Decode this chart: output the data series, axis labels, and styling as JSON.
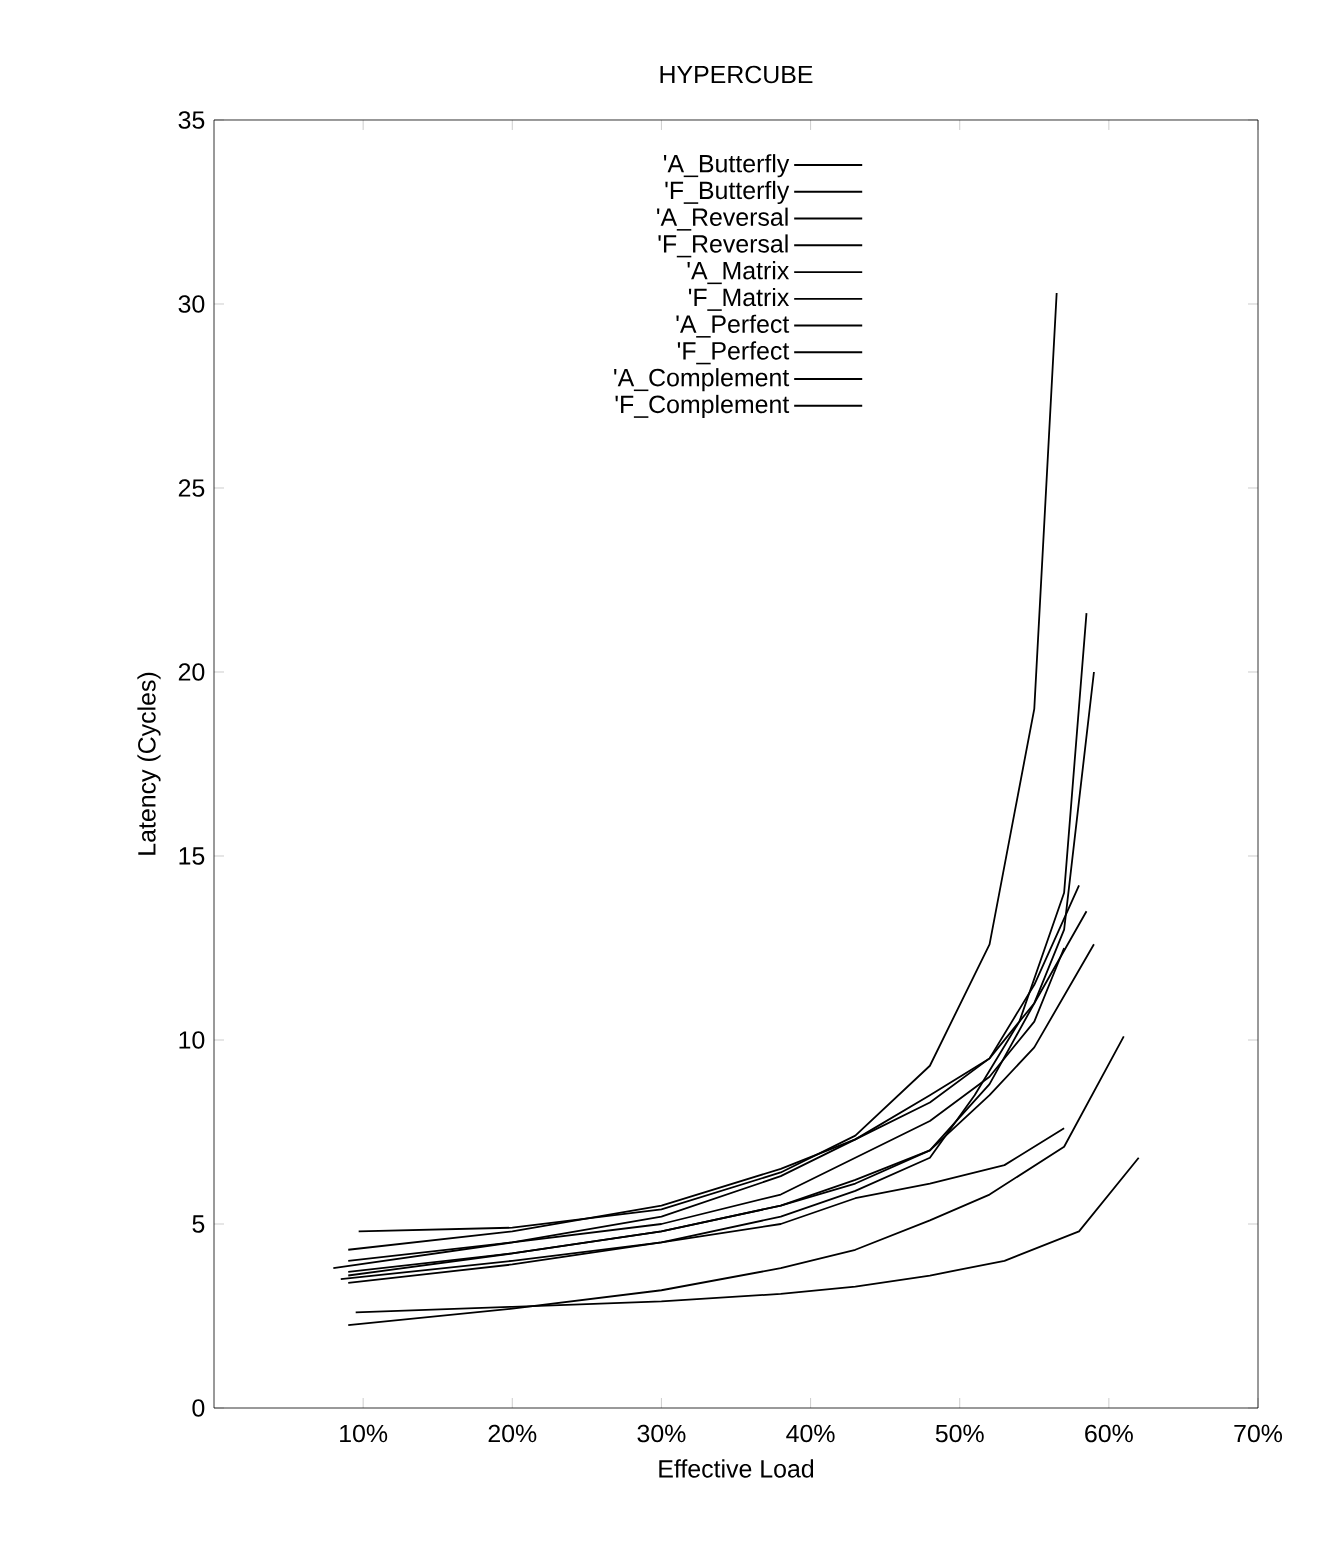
{
  "chart_data": {
    "type": "line",
    "title": "HYPERCUBE",
    "xlabel": "Effective Load",
    "ylabel": "Latency (Cycles)",
    "xlim": [
      0,
      70
    ],
    "ylim": [
      0,
      35
    ],
    "xticks": [
      {
        "value": 10,
        "label": "10%"
      },
      {
        "value": 20,
        "label": "20%"
      },
      {
        "value": 30,
        "label": "30%"
      },
      {
        "value": 40,
        "label": "40%"
      },
      {
        "value": 50,
        "label": "50%"
      },
      {
        "value": 60,
        "label": "60%"
      },
      {
        "value": 70,
        "label": "70%"
      }
    ],
    "yticks": [
      0,
      5,
      10,
      15,
      20,
      25,
      30,
      35
    ],
    "legend": "top",
    "grid": false,
    "marker": "none",
    "line_style": "solid",
    "series": [
      {
        "name": "'A_Butterfly",
        "color": "#000000",
        "x": [
          9.7,
          20,
          30,
          38,
          43,
          48,
          52,
          55,
          56.5
        ],
        "values": [
          4.8,
          4.9,
          5.4,
          6.4,
          7.4,
          9.3,
          12.6,
          19,
          30.3
        ]
      },
      {
        "name": "'F_Butterfly",
        "color": "#000000",
        "x": [
          9,
          20,
          30,
          38,
          43,
          48,
          51,
          54,
          57,
          58.5
        ],
        "values": [
          3.4,
          3.9,
          4.5,
          5.2,
          5.9,
          6.8,
          8.5,
          10.5,
          14,
          21.6
        ]
      },
      {
        "name": "'A_Reversal",
        "color": "#000000",
        "x": [
          9,
          20,
          30,
          38,
          43,
          48,
          52,
          55,
          57,
          59
        ],
        "values": [
          3.7,
          4.2,
          4.8,
          5.5,
          6.2,
          7,
          8.8,
          11,
          13,
          20
        ]
      },
      {
        "name": "'F_Reversal",
        "color": "#000000",
        "x": [
          8,
          20,
          30,
          38,
          43,
          48,
          52,
          55,
          58
        ],
        "values": [
          3.8,
          4.5,
          5.2,
          6.3,
          7.3,
          8.5,
          9.5,
          11.5,
          14.2
        ]
      },
      {
        "name": "'A_Matrix",
        "color": "#000000",
        "x": [
          9,
          20,
          30,
          38,
          43,
          48,
          52,
          55,
          58.5
        ],
        "values": [
          4.3,
          4.8,
          5.5,
          6.5,
          7.3,
          8.3,
          9.5,
          11,
          13.5
        ]
      },
      {
        "name": "'F_Matrix",
        "color": "#000000",
        "x": [
          9,
          20,
          30,
          38,
          43,
          48,
          52,
          55,
          59
        ],
        "values": [
          3.6,
          4.2,
          4.8,
          5.5,
          6.1,
          7,
          8.5,
          9.8,
          12.6
        ]
      },
      {
        "name": "'A_Perfect",
        "color": "#000000",
        "x": [
          9,
          20,
          30,
          38,
          43,
          48,
          52,
          55,
          57
        ],
        "values": [
          4,
          4.5,
          5,
          5.8,
          6.8,
          7.8,
          9,
          10.5,
          12.5
        ]
      },
      {
        "name": "'F_Perfect",
        "color": "#000000",
        "x": [
          8.5,
          20,
          30,
          38,
          43,
          48,
          53,
          57
        ],
        "values": [
          3.5,
          4,
          4.5,
          5,
          5.7,
          6.1,
          6.6,
          7.6
        ]
      },
      {
        "name": "'A_Complement",
        "color": "#000000",
        "x": [
          9,
          20,
          30,
          38,
          43,
          48,
          52,
          57,
          61
        ],
        "values": [
          2.25,
          2.7,
          3.2,
          3.8,
          4.3,
          5.1,
          5.8,
          7.1,
          10.1
        ]
      },
      {
        "name": "'F_Complement",
        "color": "#000000",
        "x": [
          9.5,
          20,
          30,
          38,
          43,
          48,
          53,
          58,
          62
        ],
        "values": [
          2.6,
          2.75,
          2.9,
          3.1,
          3.3,
          3.6,
          4,
          4.8,
          6.8
        ]
      }
    ]
  }
}
